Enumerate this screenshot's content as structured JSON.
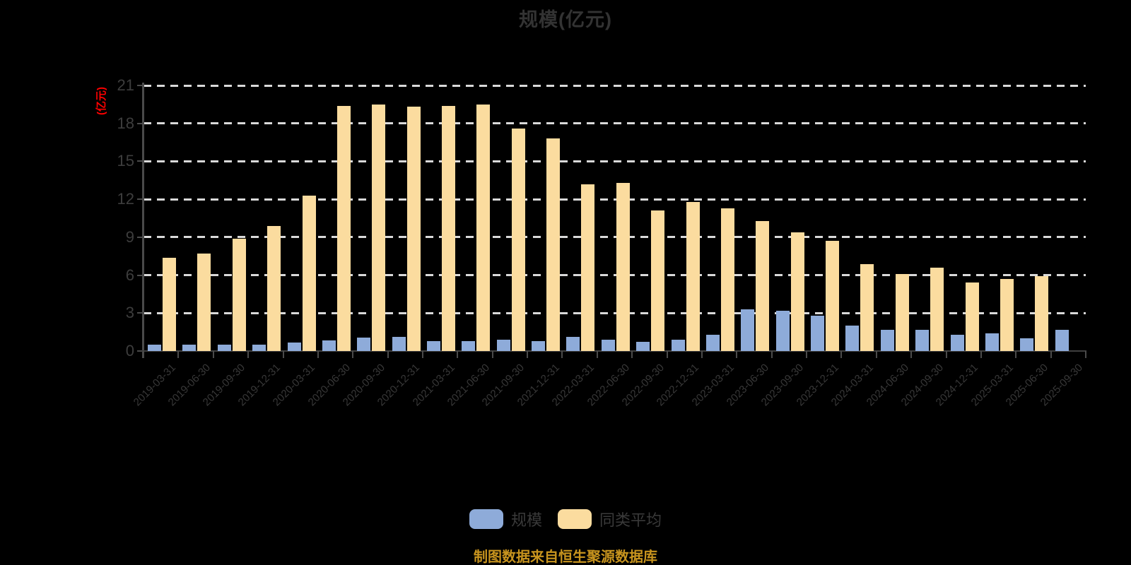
{
  "chart": {
    "title": "规模(亿元)",
    "y_axis_unit": "(亿元)",
    "source_note": "制图数据来自恒生聚源数据库"
  },
  "colors": {
    "scale_bar": "#8EABD9",
    "peer_average_bar": "#FBDC9F",
    "gridline": "#D9D9D9",
    "axis": "#4A4A4A",
    "tick_label": "#3D3D3D",
    "x_label": "#383838",
    "title": "#333333",
    "y_unit_label": "#FF0000",
    "source_note": "#C8941E"
  },
  "chart_data": {
    "type": "bar",
    "title": "规模(亿元)",
    "xlabel": "",
    "ylabel": "(亿元)",
    "ylim": [
      0,
      21
    ],
    "yticks": [
      0,
      3,
      6,
      9,
      12,
      15,
      18,
      21
    ],
    "grid": "horizontal-dashed",
    "legend_position": "bottom-center",
    "categories": [
      "2019-03-31",
      "2019-06-30",
      "2019-09-30",
      "2019-12-31",
      "2020-03-31",
      "2020-06-30",
      "2020-09-30",
      "2020-12-31",
      "2021-03-31",
      "2021-06-30",
      "2021-09-30",
      "2021-12-31",
      "2022-03-31",
      "2022-06-30",
      "2022-09-30",
      "2022-12-31",
      "2023-03-31",
      "2023-06-30",
      "2023-09-30",
      "2023-12-31",
      "2024-03-31",
      "2024-06-30",
      "2024-09-30",
      "2024-12-31",
      "2025-03-31",
      "2025-06-30",
      "2025-09-30"
    ],
    "series": [
      {
        "name": "规模",
        "color": "#8EABD9",
        "values": [
          0.5,
          0.5,
          0.5,
          0.5,
          0.7,
          0.85,
          1.05,
          1.1,
          0.8,
          0.8,
          0.9,
          0.8,
          1.1,
          0.9,
          0.75,
          0.9,
          1.3,
          3.3,
          3.2,
          2.8,
          2.0,
          1.7,
          1.7,
          1.3,
          1.4,
          1.0,
          1.7
        ]
      },
      {
        "name": "同类平均",
        "color": "#FBDC9F",
        "values": [
          7.4,
          7.7,
          8.9,
          9.9,
          12.3,
          19.4,
          19.5,
          19.3,
          19.4,
          19.5,
          17.6,
          16.8,
          13.2,
          13.3,
          11.1,
          11.8,
          11.3,
          10.3,
          9.4,
          8.7,
          6.9,
          6.1,
          6.6,
          5.4,
          5.7,
          5.9,
          null
        ]
      }
    ]
  }
}
